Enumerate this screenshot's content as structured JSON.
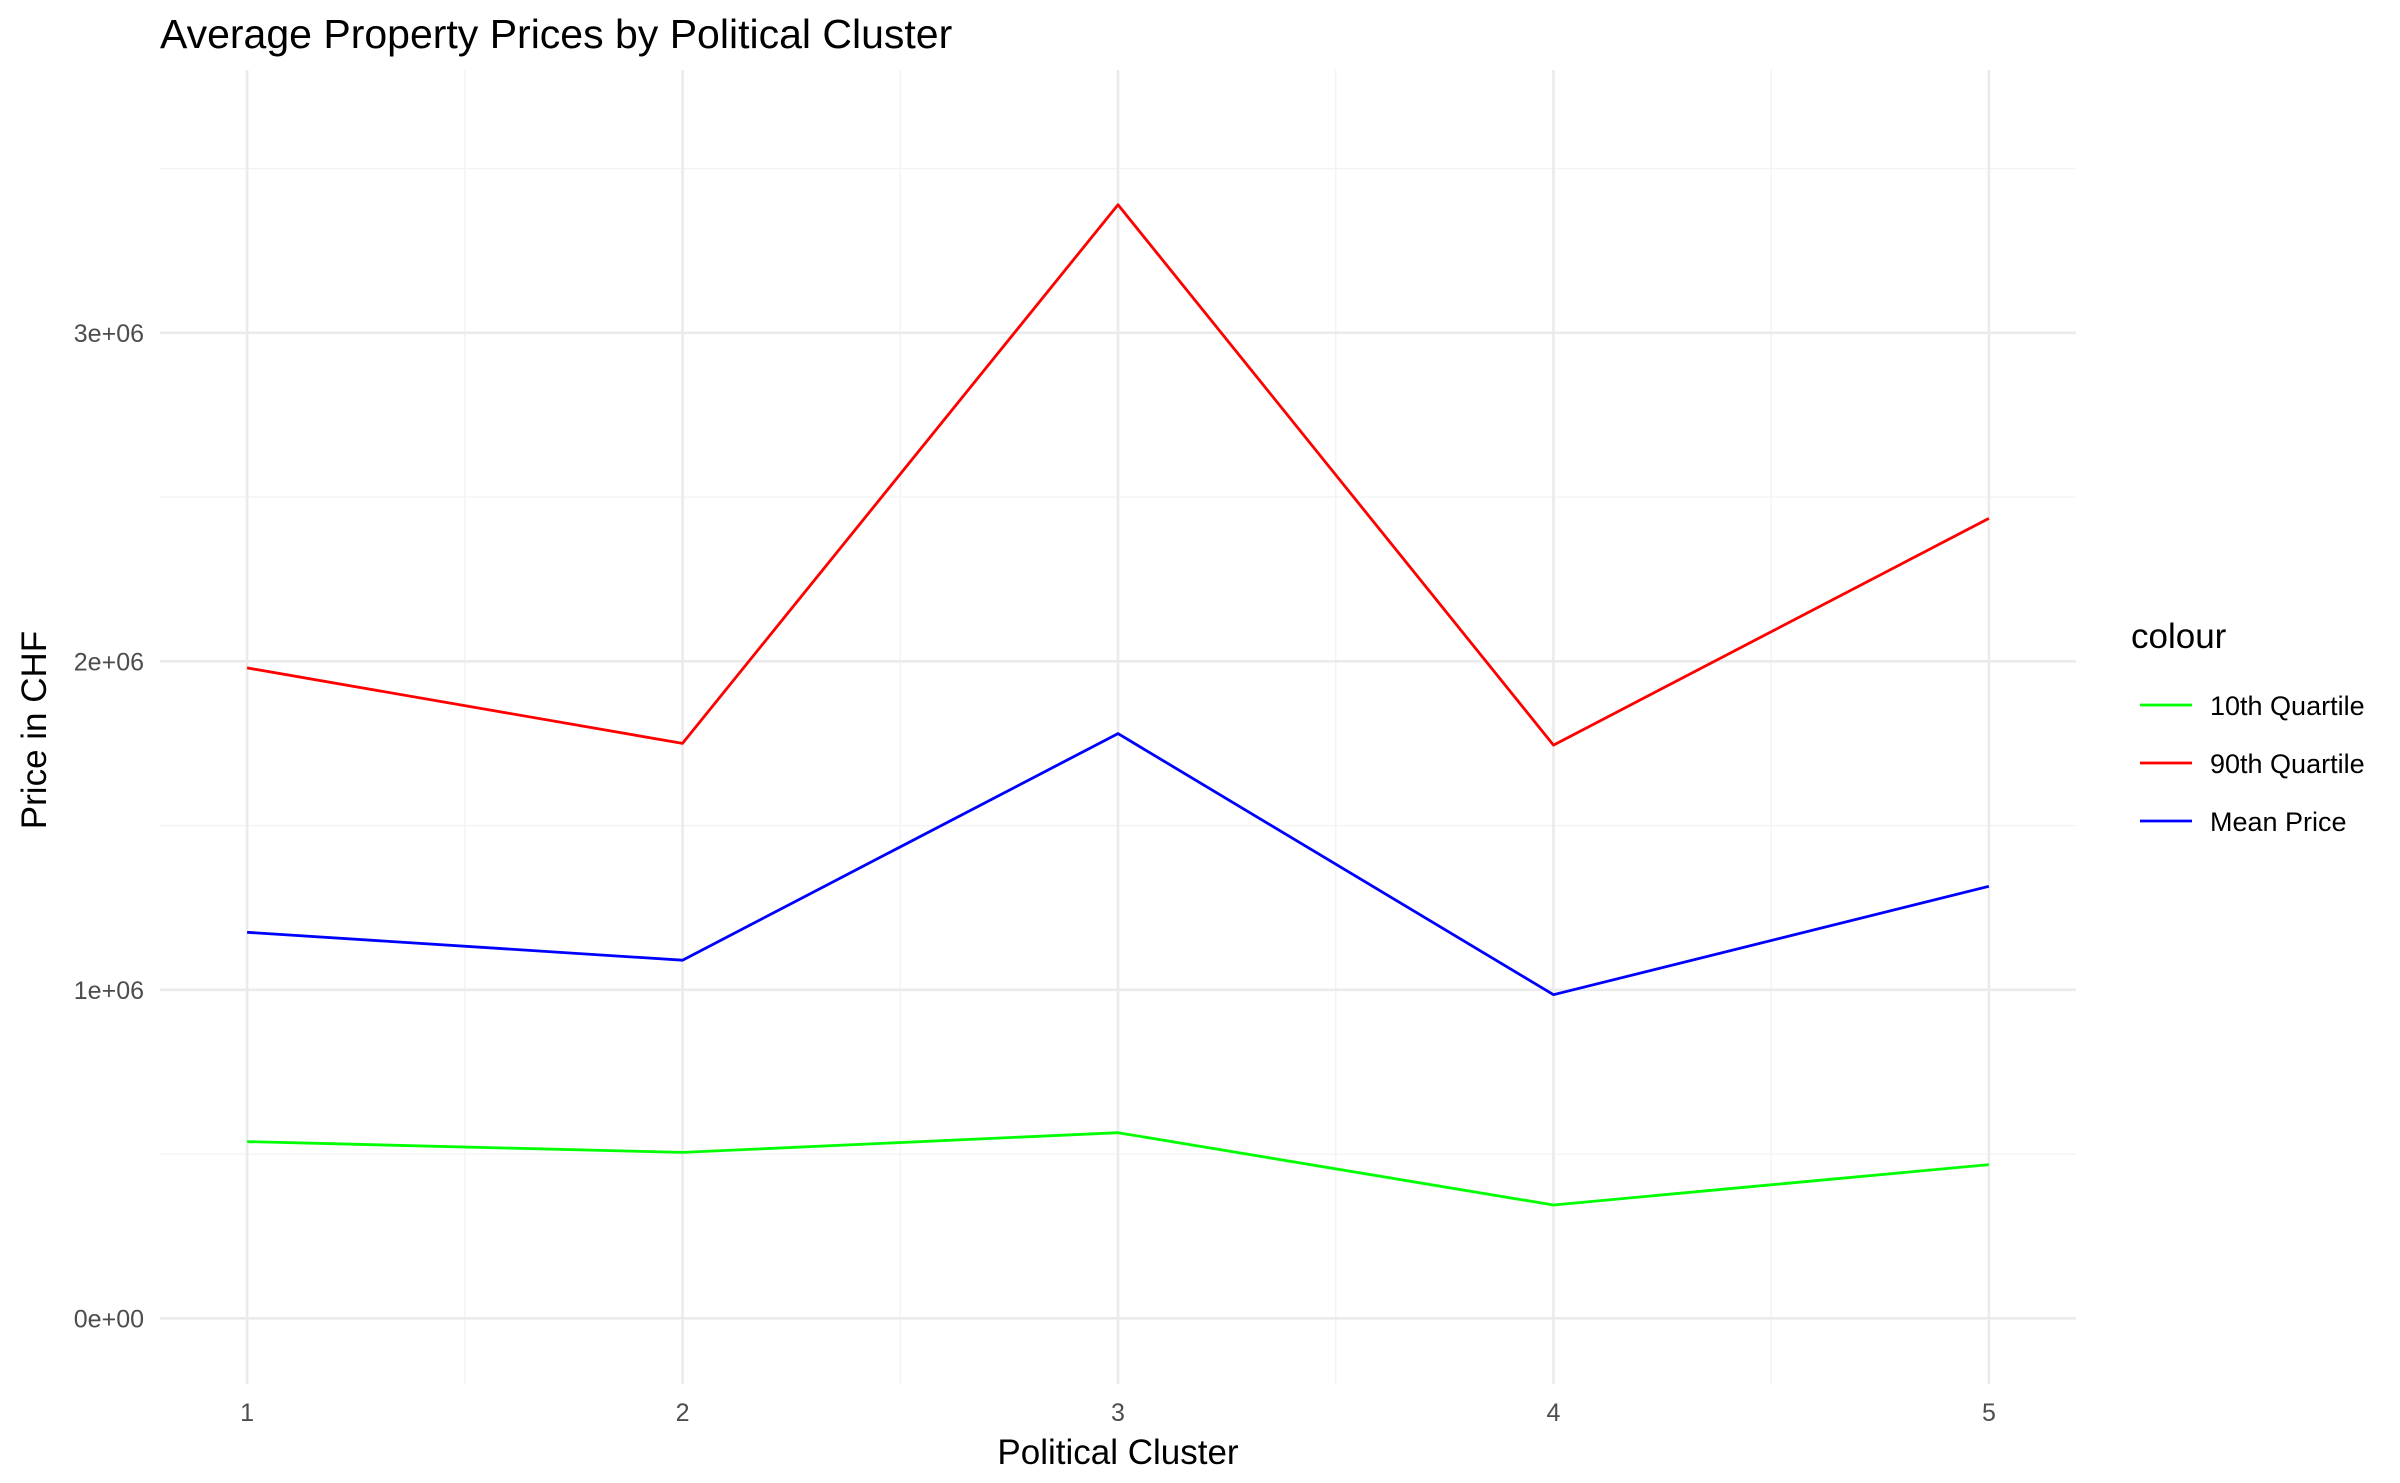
{
  "chart_data": {
    "type": "line",
    "title": "Average Property Prices by Political Cluster",
    "xlabel": "Political Cluster",
    "ylabel": "Price in CHF",
    "x": [
      1,
      2,
      3,
      4,
      5
    ],
    "xlim": [
      0.8,
      5.2
    ],
    "ylim": [
      -200000,
      3800000
    ],
    "x_ticks": [
      1,
      2,
      3,
      4,
      5
    ],
    "y_ticks": [
      0,
      1000000,
      2000000,
      3000000
    ],
    "y_tick_labels": [
      "0e+00",
      "1e+06",
      "2e+06",
      "3e+06"
    ],
    "grid": true,
    "legend": {
      "title": "colour",
      "position": "right"
    },
    "series": [
      {
        "name": "10th Quartile",
        "color": "#00ff00",
        "values": [
          538000,
          505000,
          565000,
          345000,
          468000
        ]
      },
      {
        "name": "90th Quartile",
        "color": "#ff0000",
        "values": [
          1980000,
          1750000,
          3390000,
          1745000,
          2435000
        ]
      },
      {
        "name": "Mean Price",
        "color": "#0000ff",
        "values": [
          1175000,
          1090000,
          1780000,
          985000,
          1315000
        ]
      }
    ]
  }
}
